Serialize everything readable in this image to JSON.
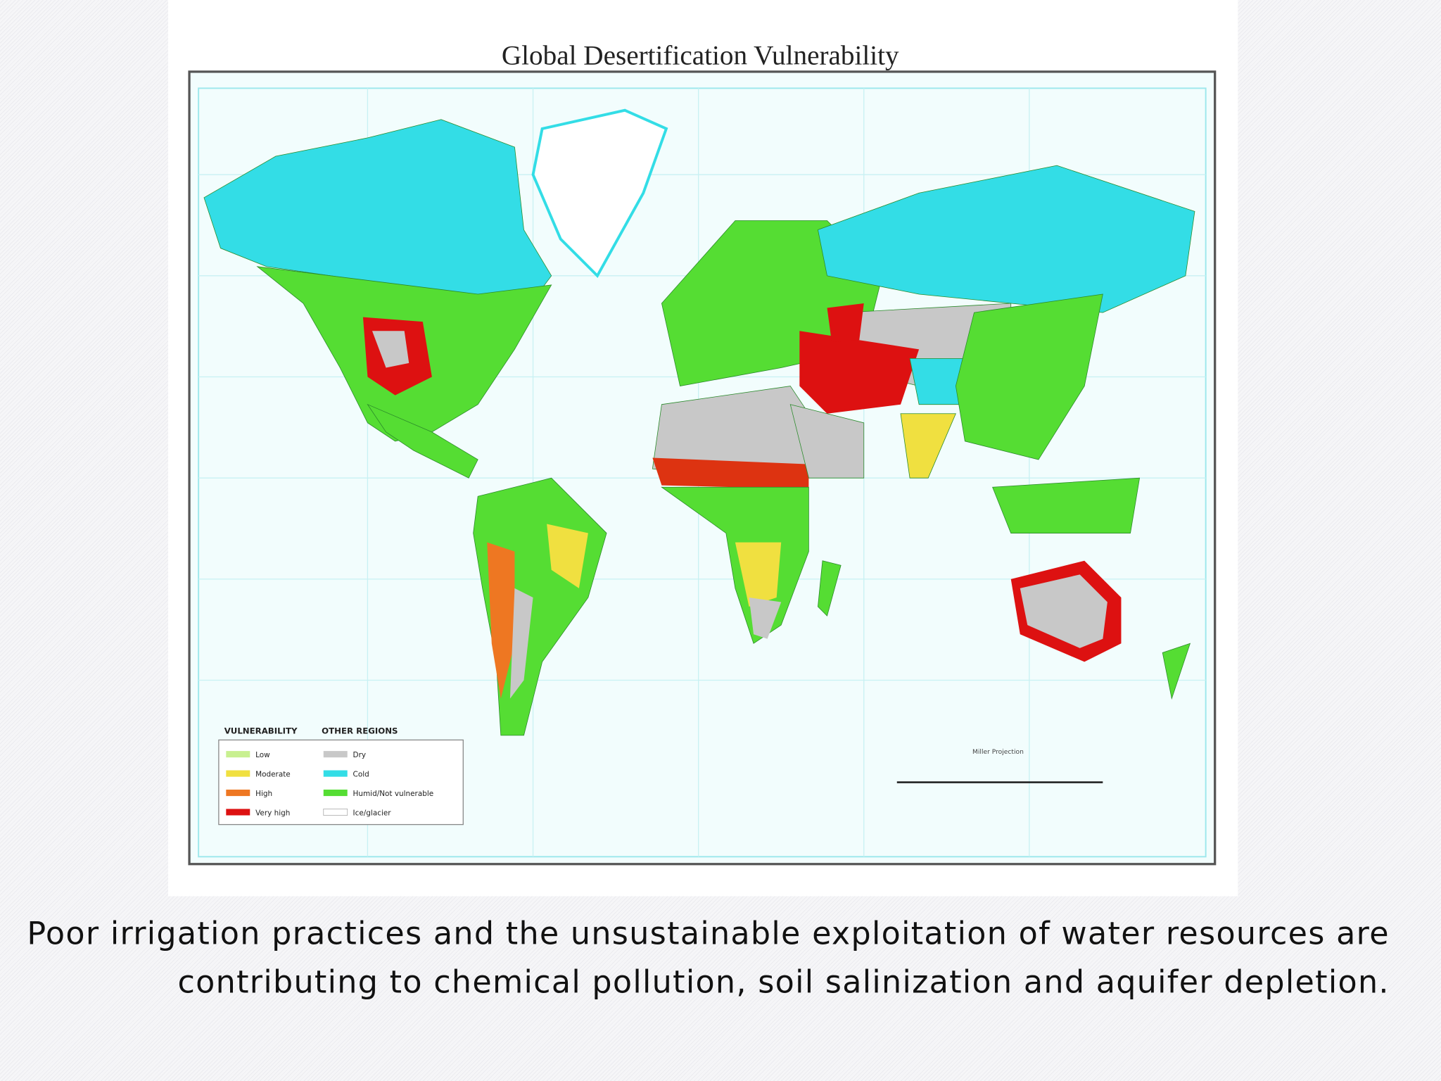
{
  "title": "Global Desertification Vulnerability",
  "legend": {
    "vulnerability": {
      "heading": "VULNERABILITY",
      "items": [
        "Low",
        "Moderate",
        "High",
        "Very high"
      ]
    },
    "other_regions": {
      "heading": "OTHER REGIONS",
      "items": [
        "Dry",
        "Cold",
        "Humid/Not vulnerable",
        "Ice/glacier"
      ]
    }
  },
  "projection": "Miller Projection",
  "caption": [
    "Poor irrigation practices and the unsustainable exploitation of water resources are",
    "contributing to chemical pollution, soil salinization and aquifer depletion."
  ]
}
